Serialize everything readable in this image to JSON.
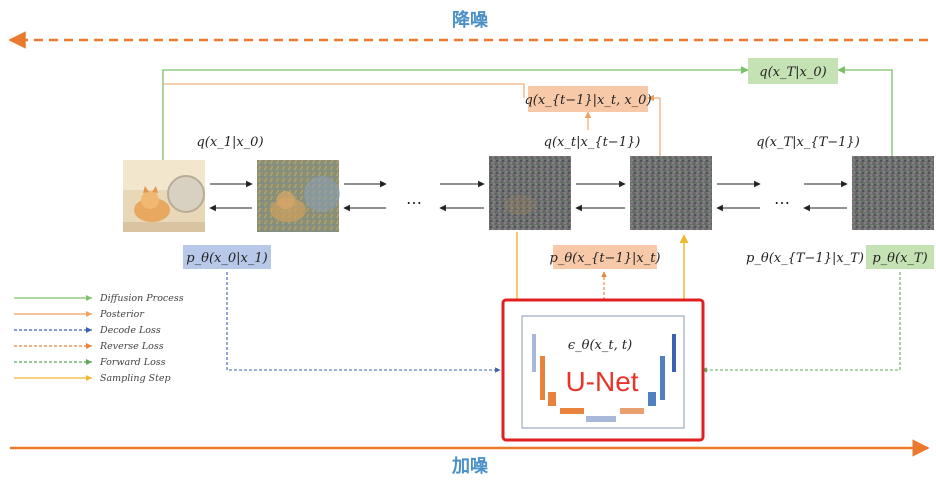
{
  "top_label": "降噪",
  "bottom_label": "加噪",
  "colors": {
    "diffusion": "#7cc068",
    "posterior": "#f0a060",
    "decode_loss": "#3a62b0",
    "reverse_loss": "#e8823c",
    "forward_loss": "#5fa85a",
    "sampling": "#f2b830",
    "big_arrow": "#ea7a2e",
    "unet_frame": "#e02020",
    "cjk_label": "#4a90c8"
  },
  "labels": {
    "q_xT_x0": "q(x_T|x_0)",
    "q_xt1_xt_x0": "q(x_{t−1}|x_t, x_0)",
    "q_x1_x0": "q(x_1|x_0)",
    "q_xt_xt1": "q(x_t|x_{t−1})",
    "q_xT_xT1": "q(x_T|x_{T−1})",
    "p_x0_x1": "p_θ(x_0|x_1)",
    "p_xt1_xt": "p_θ(x_{t−1}|x_t)",
    "p_xT1_xT": "p_θ(x_{T−1}|x_T)",
    "p_xT": "p_θ(x_T)",
    "eps": "ϵ_θ(x_t, t)",
    "unet": "U-Net",
    "ellipsis": "…"
  },
  "legend": [
    {
      "label": "Diffusion Process",
      "color": "#7cc068",
      "style": "solid"
    },
    {
      "label": "Posterior",
      "color": "#f0a060",
      "style": "solid"
    },
    {
      "label": "Decode Loss",
      "color": "#3a62b0",
      "style": "dashed"
    },
    {
      "label": "Reverse Loss",
      "color": "#e8823c",
      "style": "dashed"
    },
    {
      "label": "Forward Loss",
      "color": "#5fa85a",
      "style": "dashed"
    },
    {
      "label": "Sampling Step",
      "color": "#f2b830",
      "style": "solid"
    }
  ]
}
